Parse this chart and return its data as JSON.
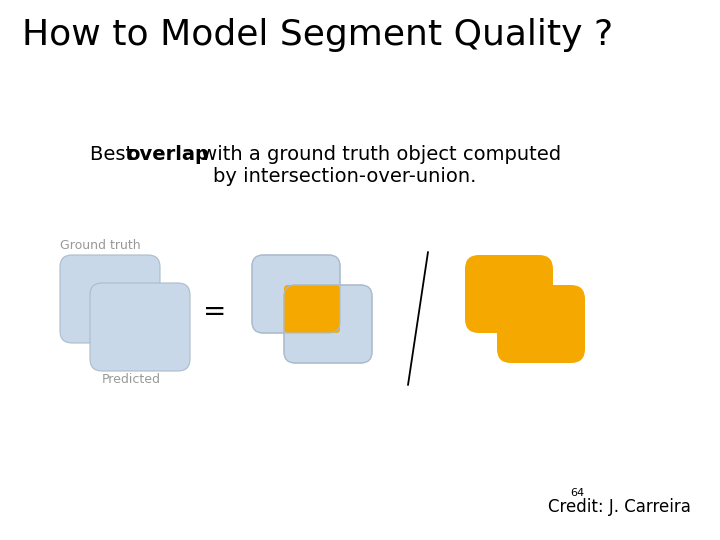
{
  "title": "How to Model Segment Quality ?",
  "label_ground_truth": "Ground truth",
  "label_predicted": "Predicted",
  "credit_number": "64",
  "credit_text": "Credit: J. Carreira",
  "bg_color": "#ffffff",
  "box_blue": "#c8d8e8",
  "box_blue_edge": "#aabccc",
  "box_orange": "#f5a800",
  "title_fontsize": 26,
  "subtitle_fontsize": 14,
  "label_fontsize": 9,
  "credit_fontsize": 12,
  "credit_num_fontsize": 8
}
